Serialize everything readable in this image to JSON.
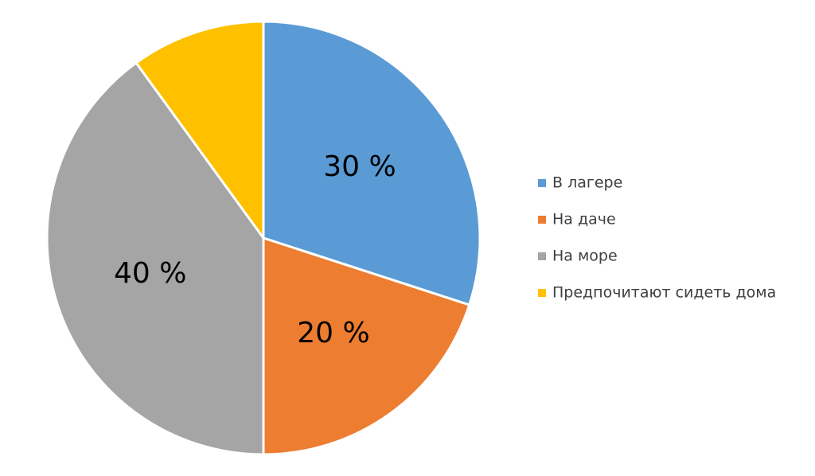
{
  "chart_data": {
    "type": "pie",
    "categories": [
      "В лагере",
      "На даче",
      "На море",
      "Предпочитают сидеть дома"
    ],
    "values": [
      30,
      20,
      40,
      10
    ],
    "value_labels": [
      "30 %",
      "20 %",
      "40 %",
      null
    ],
    "colors": [
      "#5b9bd5",
      "#ed7d31",
      "#a5a5a5",
      "#ffc000"
    ],
    "legend": "right"
  }
}
